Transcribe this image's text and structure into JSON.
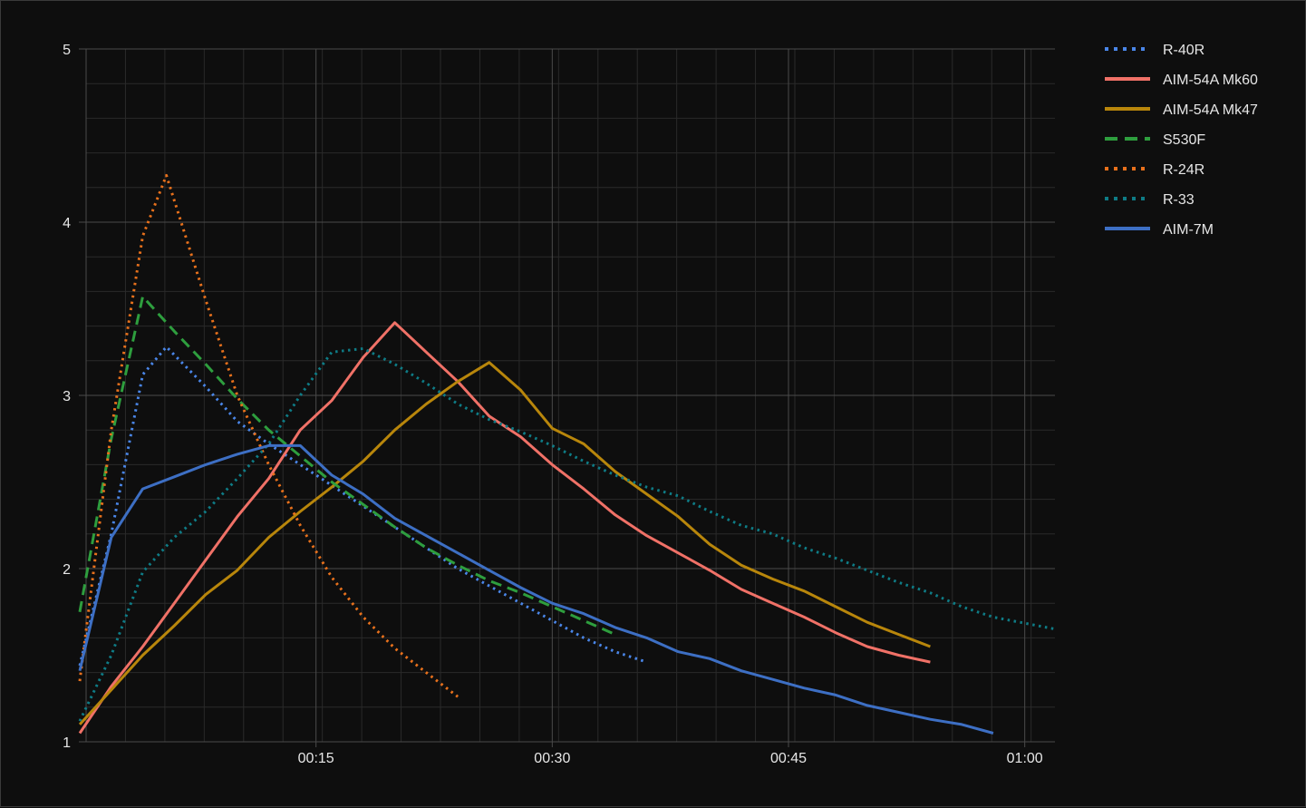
{
  "chart_data": {
    "type": "line",
    "title": "",
    "xlabel": "",
    "ylabel": "",
    "x_unit": "seconds",
    "xlim": [
      0,
      62
    ],
    "ylim": [
      1,
      5
    ],
    "y_ticks": [
      1,
      2,
      3,
      4,
      5
    ],
    "y_tick_labels": [
      "1",
      "2",
      "3",
      "4",
      "5"
    ],
    "x_ticks": [
      15,
      30,
      45,
      60
    ],
    "x_tick_labels": [
      "00:15",
      "00:30",
      "00:45",
      "01:00"
    ],
    "grid": true,
    "legend_position": "top-right",
    "series": [
      {
        "name": "R-40R",
        "color": "#4a86e8",
        "dash": "dotted",
        "points": [
          [
            0,
            1.44
          ],
          [
            2,
            2.2
          ],
          [
            4,
            3.12
          ],
          [
            5.5,
            3.28
          ],
          [
            8,
            3.05
          ],
          [
            10,
            2.85
          ],
          [
            12,
            2.72
          ],
          [
            14,
            2.6
          ],
          [
            16,
            2.48
          ],
          [
            18,
            2.36
          ],
          [
            20,
            2.24
          ],
          [
            22,
            2.12
          ],
          [
            24,
            2.0
          ],
          [
            26,
            1.9
          ],
          [
            28,
            1.8
          ],
          [
            30,
            1.7
          ],
          [
            32,
            1.6
          ],
          [
            34,
            1.52
          ],
          [
            36,
            1.46
          ]
        ]
      },
      {
        "name": "AIM-54A Mk60",
        "color": "#f07167",
        "dash": "solid",
        "points": [
          [
            0,
            1.05
          ],
          [
            2,
            1.32
          ],
          [
            4,
            1.55
          ],
          [
            6,
            1.8
          ],
          [
            8,
            2.05
          ],
          [
            10,
            2.3
          ],
          [
            12,
            2.52
          ],
          [
            14,
            2.8
          ],
          [
            16,
            2.97
          ],
          [
            18,
            3.22
          ],
          [
            20,
            3.42
          ],
          [
            22,
            3.25
          ],
          [
            24,
            3.08
          ],
          [
            26,
            2.88
          ],
          [
            28,
            2.76
          ],
          [
            30,
            2.6
          ],
          [
            32,
            2.46
          ],
          [
            34,
            2.31
          ],
          [
            36,
            2.19
          ],
          [
            38,
            2.09
          ],
          [
            40,
            1.99
          ],
          [
            42,
            1.88
          ],
          [
            44,
            1.8
          ],
          [
            46,
            1.72
          ],
          [
            48,
            1.63
          ],
          [
            50,
            1.55
          ],
          [
            52,
            1.5
          ],
          [
            54,
            1.46
          ]
        ]
      },
      {
        "name": "AIM-54A Mk47",
        "color": "#b8860b",
        "dash": "solid",
        "points": [
          [
            0,
            1.1
          ],
          [
            2,
            1.3
          ],
          [
            4,
            1.5
          ],
          [
            6,
            1.67
          ],
          [
            8,
            1.85
          ],
          [
            10,
            1.99
          ],
          [
            12,
            2.18
          ],
          [
            14,
            2.33
          ],
          [
            16,
            2.47
          ],
          [
            18,
            2.62
          ],
          [
            20,
            2.8
          ],
          [
            22,
            2.95
          ],
          [
            24,
            3.08
          ],
          [
            26,
            3.19
          ],
          [
            28,
            3.03
          ],
          [
            30,
            2.81
          ],
          [
            32,
            2.72
          ],
          [
            34,
            2.56
          ],
          [
            36,
            2.43
          ],
          [
            38,
            2.3
          ],
          [
            40,
            2.14
          ],
          [
            42,
            2.02
          ],
          [
            44,
            1.94
          ],
          [
            46,
            1.87
          ],
          [
            48,
            1.78
          ],
          [
            50,
            1.69
          ],
          [
            52,
            1.62
          ],
          [
            54,
            1.55
          ]
        ]
      },
      {
        "name": "S530F",
        "color": "#2e9e3e",
        "dash": "dashed",
        "points": [
          [
            0,
            1.75
          ],
          [
            2,
            2.75
          ],
          [
            4,
            3.57
          ],
          [
            6,
            3.37
          ],
          [
            8,
            3.18
          ],
          [
            10,
            2.98
          ],
          [
            12,
            2.8
          ],
          [
            14,
            2.65
          ],
          [
            16,
            2.5
          ],
          [
            18,
            2.37
          ],
          [
            20,
            2.24
          ],
          [
            22,
            2.12
          ],
          [
            24,
            2.02
          ],
          [
            26,
            1.93
          ],
          [
            28,
            1.86
          ],
          [
            30,
            1.78
          ],
          [
            32,
            1.7
          ],
          [
            34,
            1.62
          ]
        ]
      },
      {
        "name": "R-24R",
        "color": "#e8711c",
        "dash": "dotted",
        "points": [
          [
            0,
            1.35
          ],
          [
            2,
            2.8
          ],
          [
            4,
            3.92
          ],
          [
            5.5,
            4.27
          ],
          [
            8,
            3.55
          ],
          [
            10,
            3.0
          ],
          [
            12,
            2.6
          ],
          [
            14,
            2.25
          ],
          [
            16,
            1.95
          ],
          [
            18,
            1.72
          ],
          [
            20,
            1.54
          ],
          [
            22,
            1.4
          ],
          [
            24,
            1.26
          ]
        ]
      },
      {
        "name": "R-33",
        "color": "#0e7c86",
        "dash": "dotted",
        "points": [
          [
            0,
            1.12
          ],
          [
            2,
            1.5
          ],
          [
            4,
            1.98
          ],
          [
            6,
            2.18
          ],
          [
            8,
            2.33
          ],
          [
            10,
            2.52
          ],
          [
            12,
            2.72
          ],
          [
            14,
            3.0
          ],
          [
            16,
            3.25
          ],
          [
            18,
            3.27
          ],
          [
            20,
            3.18
          ],
          [
            22,
            3.07
          ],
          [
            24,
            2.95
          ],
          [
            26,
            2.86
          ],
          [
            28,
            2.79
          ],
          [
            30,
            2.71
          ],
          [
            32,
            2.62
          ],
          [
            34,
            2.54
          ],
          [
            36,
            2.47
          ],
          [
            38,
            2.42
          ],
          [
            40,
            2.33
          ],
          [
            42,
            2.25
          ],
          [
            44,
            2.2
          ],
          [
            46,
            2.12
          ],
          [
            48,
            2.06
          ],
          [
            50,
            1.99
          ],
          [
            52,
            1.92
          ],
          [
            54,
            1.86
          ],
          [
            56,
            1.78
          ],
          [
            58,
            1.72
          ],
          [
            62,
            1.65
          ]
        ]
      },
      {
        "name": "AIM-7M",
        "color": "#3d6fc4",
        "dash": "solid",
        "points": [
          [
            0,
            1.41
          ],
          [
            2,
            2.18
          ],
          [
            4,
            2.46
          ],
          [
            6,
            2.53
          ],
          [
            8,
            2.6
          ],
          [
            10,
            2.66
          ],
          [
            12,
            2.71
          ],
          [
            14,
            2.71
          ],
          [
            16,
            2.54
          ],
          [
            18,
            2.43
          ],
          [
            20,
            2.29
          ],
          [
            22,
            2.19
          ],
          [
            24,
            2.09
          ],
          [
            26,
            1.99
          ],
          [
            28,
            1.89
          ],
          [
            30,
            1.8
          ],
          [
            32,
            1.74
          ],
          [
            34,
            1.66
          ],
          [
            36,
            1.6
          ],
          [
            38,
            1.52
          ],
          [
            40,
            1.48
          ],
          [
            42,
            1.41
          ],
          [
            44,
            1.36
          ],
          [
            46,
            1.31
          ],
          [
            48,
            1.27
          ],
          [
            50,
            1.21
          ],
          [
            52,
            1.17
          ],
          [
            54,
            1.13
          ],
          [
            56,
            1.1
          ],
          [
            58,
            1.05
          ]
        ]
      }
    ]
  }
}
